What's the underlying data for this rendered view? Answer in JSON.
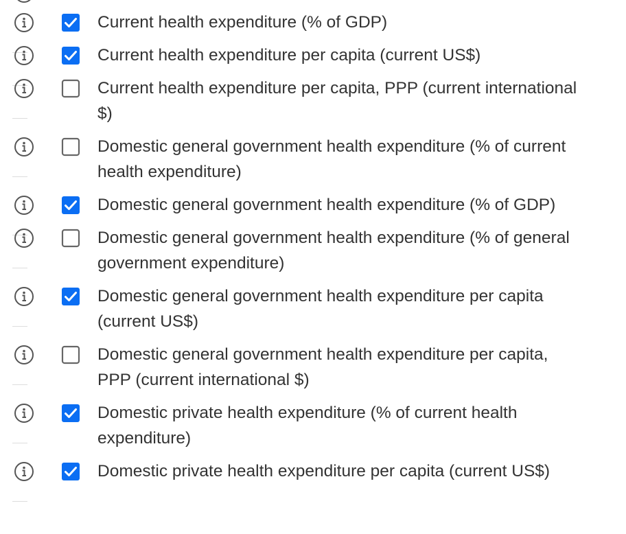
{
  "items": [
    {
      "label": "Current health expenditure (% of GDP)",
      "checked": true
    },
    {
      "label": "Current health expenditure per capita (current US$)",
      "checked": true
    },
    {
      "label": "Current health expenditure per capita, PPP (current international $)",
      "checked": false
    },
    {
      "label": "Domestic general government health expenditure (% of current health expenditure)",
      "checked": false
    },
    {
      "label": "Domestic general government health expenditure (% of GDP)",
      "checked": true
    },
    {
      "label": "Domestic general government health expenditure (% of general government expenditure)",
      "checked": false
    },
    {
      "label": "Domestic general government health expenditure per capita (current US$)",
      "checked": true
    },
    {
      "label": "Domestic general government health expenditure per capita, PPP (current international $)",
      "checked": false
    },
    {
      "label": "Domestic private health expenditure (% of current health expenditure)",
      "checked": true
    },
    {
      "label": "Domestic private health expenditure per capita (current US$)",
      "checked": true
    }
  ]
}
